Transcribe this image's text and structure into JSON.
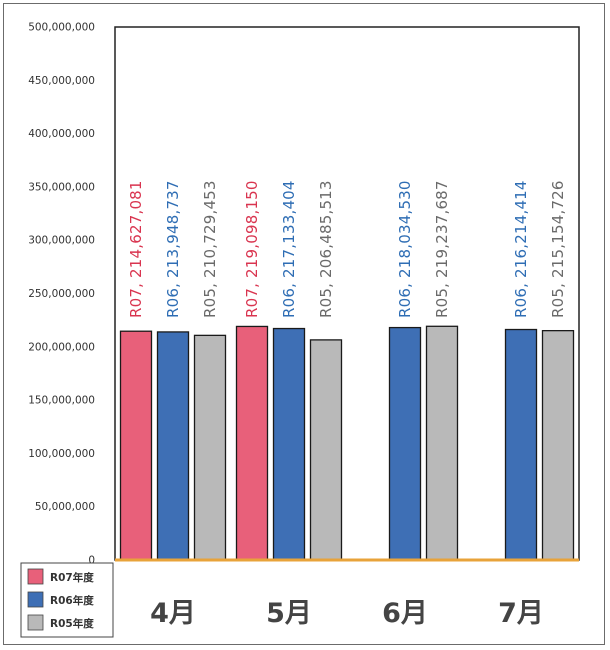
{
  "chart_data": {
    "type": "bar",
    "categories": [
      "4月",
      "5月",
      "6月",
      "7月"
    ],
    "ylim": [
      0,
      500000000
    ],
    "yticks": [
      "0",
      "50,000,000",
      "100,000,000",
      "150,000,000",
      "200,000,000",
      "250,000,000",
      "300,000,000",
      "350,000,000",
      "400,000,000",
      "450,000,000",
      "500,000,000"
    ],
    "series": [
      {
        "name": "R07年度",
        "short": "R07",
        "color": "#e8607a",
        "label_color": "#d9344f",
        "values": [
          214627081,
          219098150,
          null,
          null
        ],
        "labels": [
          "R07, 214,627,081",
          "R07, 219,098,150",
          null,
          null
        ]
      },
      {
        "name": "R06年度",
        "short": "R06",
        "color": "#3e6fb5",
        "label_color": "#2e6db4",
        "values": [
          213948737,
          217133404,
          218034530,
          216214414
        ],
        "labels": [
          "R06, 213,948,737",
          "R06, 217,133,404",
          "R06, 218,034,530",
          "R06, 216,214,414"
        ]
      },
      {
        "name": "R05年度",
        "short": "R05",
        "color": "#b9b9b9",
        "label_color": "#6a6a6a",
        "values": [
          210729453,
          206485513,
          219237687,
          215154726
        ],
        "labels": [
          "R05, 210,729,453",
          "R05, 206,485,513",
          "R05, 219,237,687",
          "R05, 215,154,726"
        ]
      }
    ],
    "legend_position": "bottom-left",
    "grid": false
  }
}
